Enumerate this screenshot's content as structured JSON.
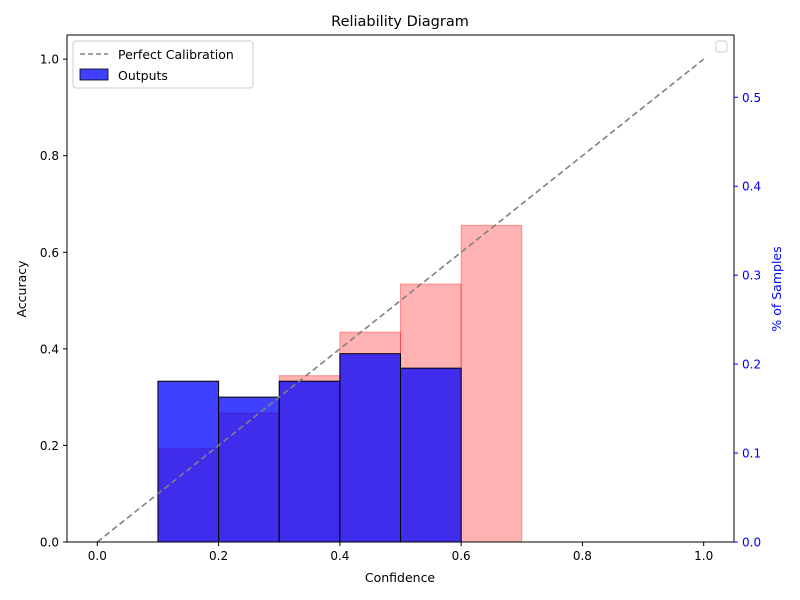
{
  "chart_data": {
    "type": "bar",
    "title": "Reliability Diagram",
    "xlabel": "Confidence",
    "ylabel": "Accuracy",
    "y2label": "% of Samples",
    "xlim": [
      -0.05,
      1.05
    ],
    "ylim": [
      0,
      1.05
    ],
    "y2lim": [
      0,
      0.57
    ],
    "x_ticks": [
      0.0,
      0.2,
      0.4,
      0.6,
      0.8,
      1.0
    ],
    "x_tick_labels": [
      "0.0",
      "0.2",
      "0.4",
      "0.6",
      "0.8",
      "1.0"
    ],
    "y_ticks": [
      0.0,
      0.2,
      0.4,
      0.6,
      0.8,
      1.0
    ],
    "y_tick_labels": [
      "0.0",
      "0.2",
      "0.4",
      "0.6",
      "0.8",
      "1.0"
    ],
    "y2_ticks": [
      0.0,
      0.1,
      0.2,
      0.3,
      0.4,
      0.5
    ],
    "y2_tick_labels": [
      "0.0",
      "0.1",
      "0.2",
      "0.3",
      "0.4",
      "0.5"
    ],
    "bin_width": 0.1,
    "series": [
      {
        "name": "Outputs",
        "axis": "left",
        "color": "#0000ff",
        "bin_starts": [
          0.1,
          0.2,
          0.3,
          0.4,
          0.5
        ],
        "values": [
          0.333,
          0.3,
          0.333,
          0.39,
          0.36
        ]
      },
      {
        "axis": "right",
        "color": "#ff0000",
        "bin_starts": [
          0.1,
          0.2,
          0.3,
          0.4,
          0.5,
          0.6
        ],
        "values": [
          0.105,
          0.145,
          0.187,
          0.236,
          0.29,
          0.356
        ]
      },
      {
        "name": "Perfect Calibration",
        "type": "line",
        "style": "dashed",
        "color": "#808080",
        "x": [
          0.0,
          1.0
        ],
        "y": [
          0.0,
          1.0
        ]
      }
    ],
    "legend": {
      "position": "top-left",
      "entries": [
        "Perfect Calibration",
        "Outputs"
      ]
    },
    "secondary_legend_position": "top-right",
    "grid": false
  }
}
